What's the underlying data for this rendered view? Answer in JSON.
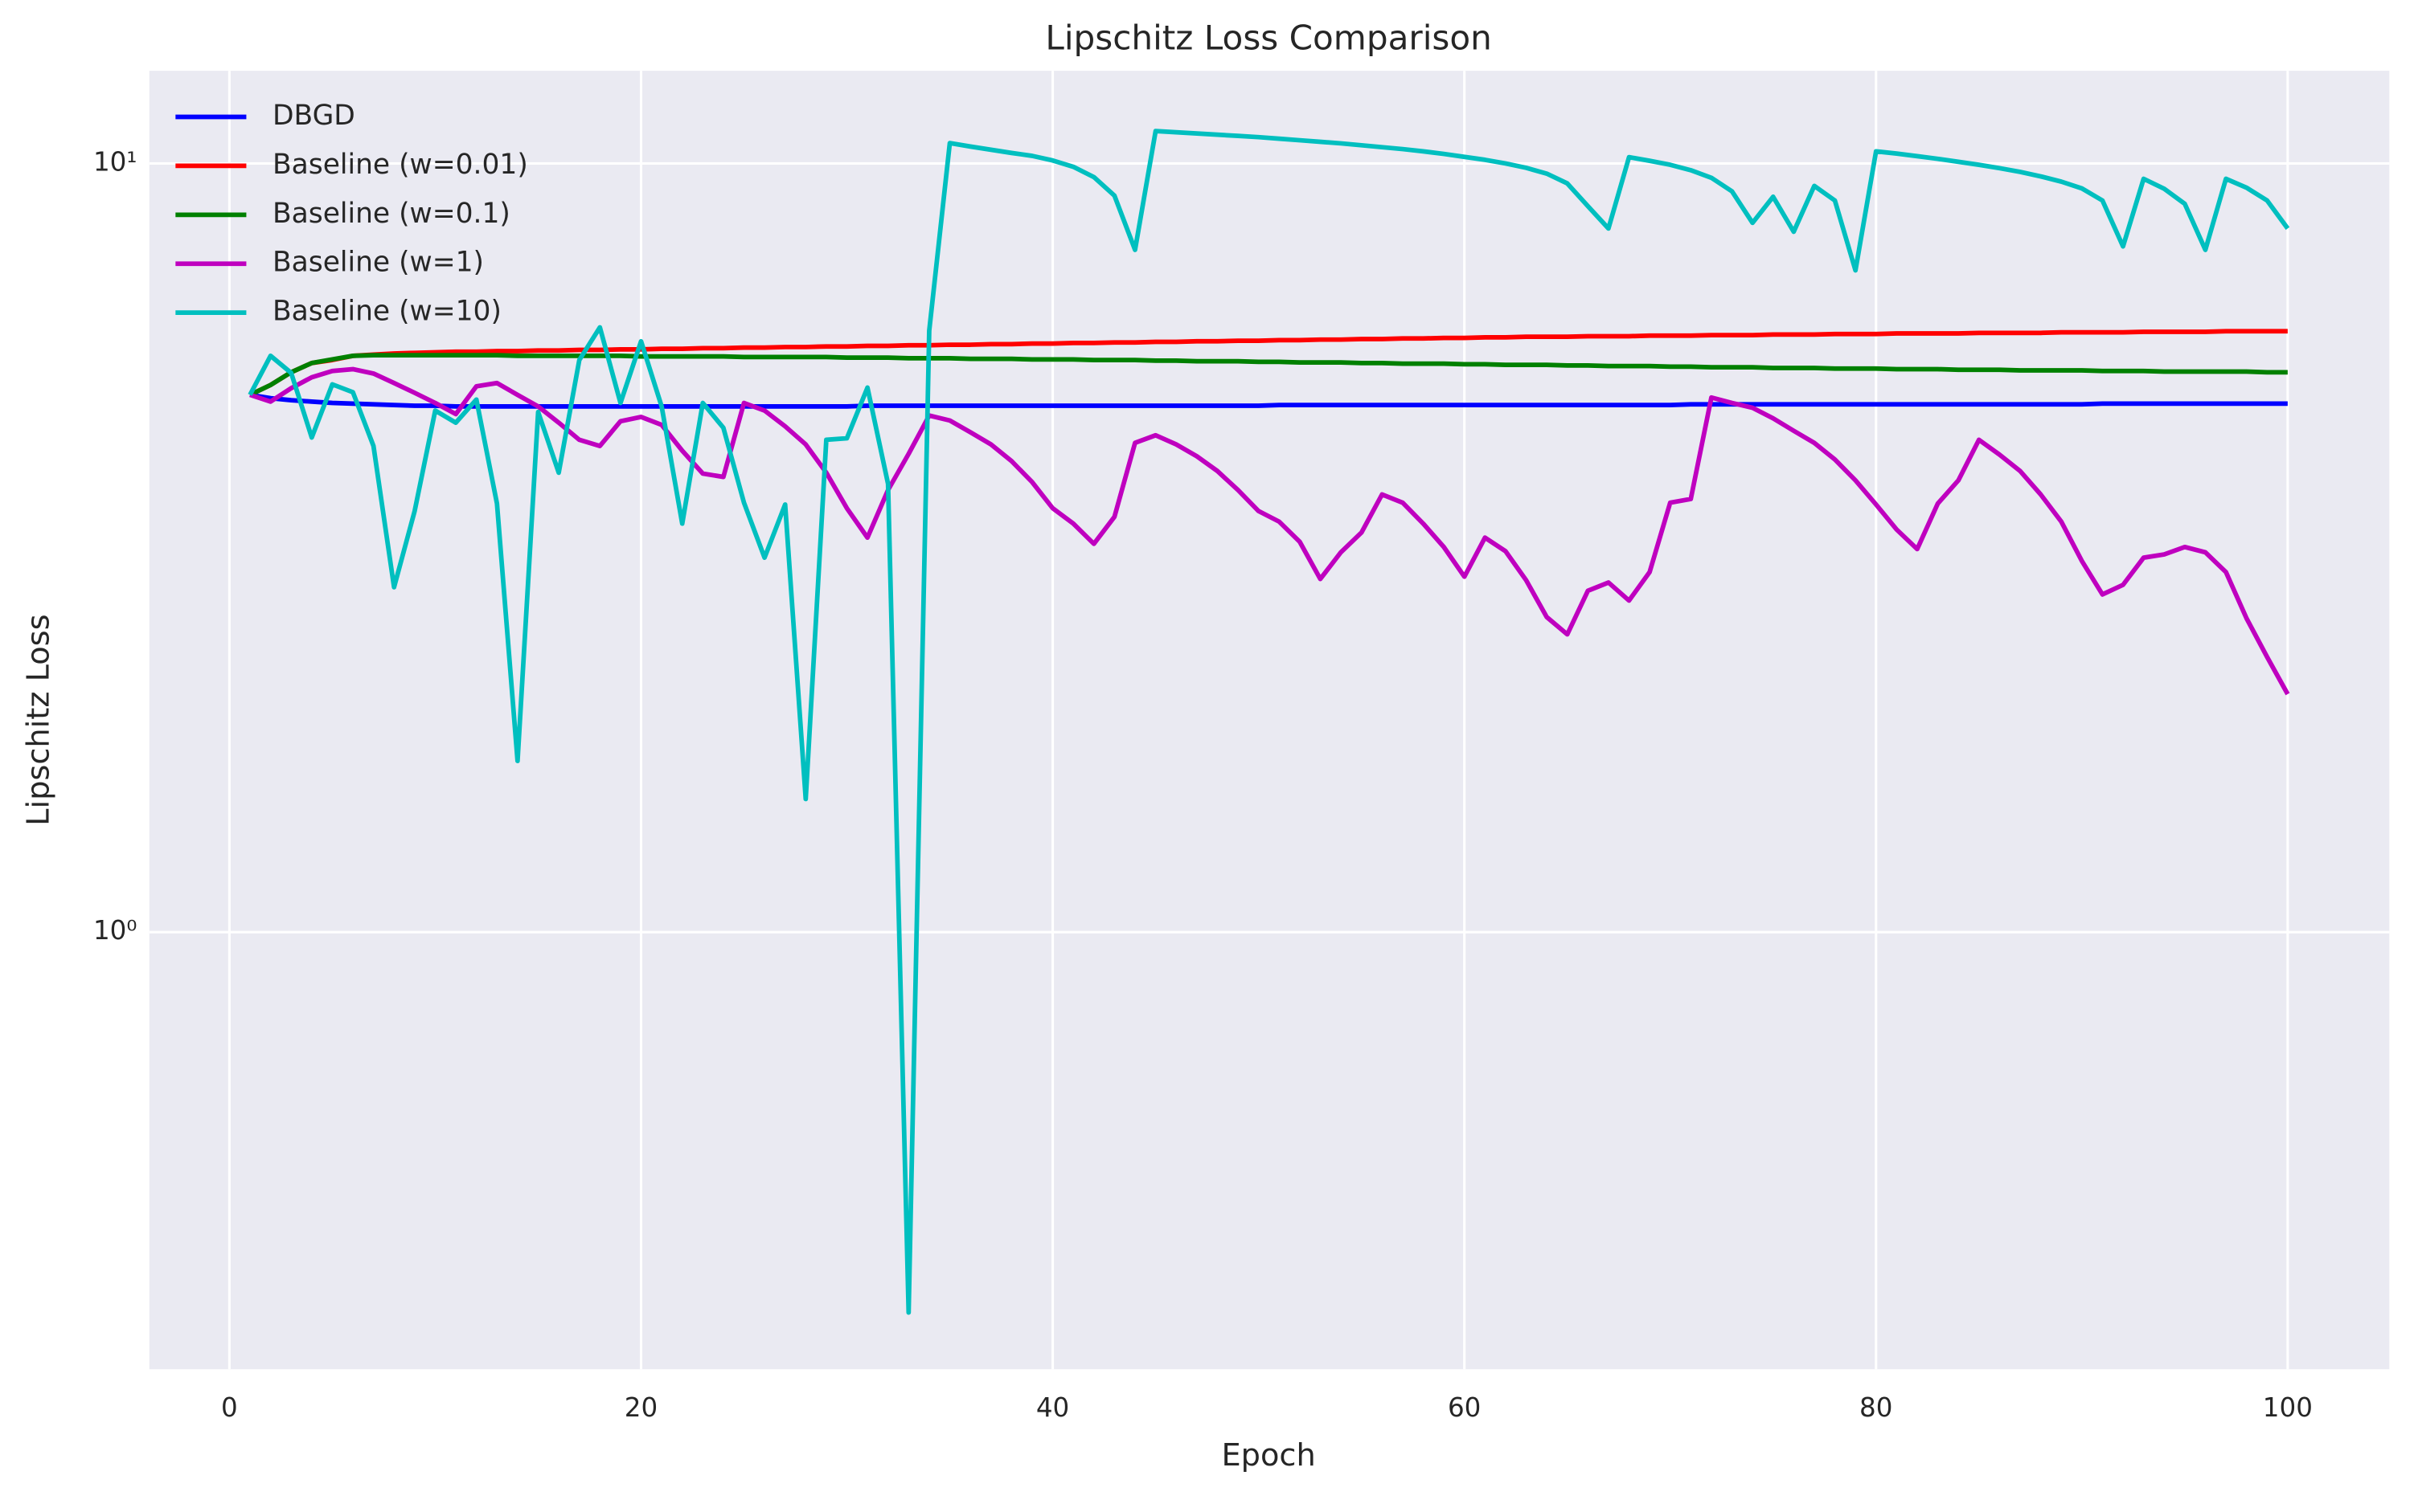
{
  "chart_data": {
    "type": "line",
    "title": "Lipschitz Loss Comparison",
    "x_label": "Epoch",
    "y_label": "Lipschitz Loss",
    "x": [
      1,
      2,
      3,
      4,
      5,
      6,
      7,
      8,
      9,
      10,
      11,
      12,
      13,
      14,
      15,
      16,
      17,
      18,
      19,
      20,
      21,
      22,
      23,
      24,
      25,
      26,
      27,
      28,
      29,
      30,
      31,
      32,
      33,
      34,
      35,
      36,
      37,
      38,
      39,
      40,
      41,
      42,
      43,
      44,
      45,
      46,
      47,
      48,
      49,
      50,
      51,
      52,
      53,
      54,
      55,
      56,
      57,
      58,
      59,
      60,
      61,
      62,
      63,
      64,
      65,
      66,
      67,
      68,
      69,
      70,
      71,
      72,
      73,
      74,
      75,
      76,
      77,
      78,
      79,
      80,
      81,
      82,
      83,
      84,
      85,
      86,
      87,
      88,
      89,
      90,
      91,
      92,
      93,
      94,
      95,
      96,
      97,
      98,
      99,
      100
    ],
    "series": [
      {
        "name": "DBGD",
        "color": "#0000ff",
        "values": [
          5.0,
          4.95,
          4.92,
          4.9,
          4.88,
          4.87,
          4.86,
          4.85,
          4.84,
          4.84,
          4.83,
          4.83,
          4.83,
          4.83,
          4.83,
          4.83,
          4.83,
          4.83,
          4.83,
          4.83,
          4.83,
          4.83,
          4.83,
          4.83,
          4.83,
          4.83,
          4.83,
          4.83,
          4.83,
          4.83,
          4.84,
          4.84,
          4.84,
          4.84,
          4.84,
          4.84,
          4.84,
          4.84,
          4.84,
          4.84,
          4.84,
          4.84,
          4.84,
          4.84,
          4.84,
          4.84,
          4.84,
          4.84,
          4.84,
          4.84,
          4.85,
          4.85,
          4.85,
          4.85,
          4.85,
          4.85,
          4.85,
          4.85,
          4.85,
          4.85,
          4.85,
          4.85,
          4.85,
          4.85,
          4.85,
          4.85,
          4.85,
          4.85,
          4.85,
          4.85,
          4.86,
          4.86,
          4.86,
          4.86,
          4.86,
          4.86,
          4.86,
          4.86,
          4.86,
          4.86,
          4.86,
          4.86,
          4.86,
          4.86,
          4.86,
          4.86,
          4.86,
          4.86,
          4.86,
          4.86,
          4.87,
          4.87,
          4.87,
          4.87,
          4.87,
          4.87,
          4.87,
          4.87,
          4.87,
          4.87
        ]
      },
      {
        "name": "Baseline (w=0.01)",
        "color": "#ff0000",
        "values": [
          5.0,
          5.15,
          5.35,
          5.5,
          5.55,
          5.62,
          5.64,
          5.66,
          5.67,
          5.68,
          5.69,
          5.69,
          5.7,
          5.7,
          5.71,
          5.71,
          5.72,
          5.72,
          5.73,
          5.73,
          5.74,
          5.74,
          5.75,
          5.75,
          5.76,
          5.76,
          5.77,
          5.77,
          5.78,
          5.78,
          5.79,
          5.79,
          5.8,
          5.8,
          5.81,
          5.81,
          5.82,
          5.82,
          5.83,
          5.83,
          5.84,
          5.84,
          5.85,
          5.85,
          5.86,
          5.86,
          5.87,
          5.87,
          5.88,
          5.88,
          5.89,
          5.89,
          5.9,
          5.9,
          5.91,
          5.91,
          5.92,
          5.92,
          5.93,
          5.93,
          5.94,
          5.94,
          5.95,
          5.95,
          5.95,
          5.96,
          5.96,
          5.96,
          5.97,
          5.97,
          5.97,
          5.98,
          5.98,
          5.98,
          5.99,
          5.99,
          5.99,
          6.0,
          6.0,
          6.0,
          6.01,
          6.01,
          6.01,
          6.01,
          6.02,
          6.02,
          6.02,
          6.02,
          6.03,
          6.03,
          6.03,
          6.03,
          6.04,
          6.04,
          6.04,
          6.04,
          6.05,
          6.05,
          6.05,
          6.05
        ]
      },
      {
        "name": "Baseline (w=0.1)",
        "color": "#008000",
        "values": [
          5.0,
          5.15,
          5.35,
          5.5,
          5.56,
          5.62,
          5.63,
          5.63,
          5.63,
          5.63,
          5.63,
          5.63,
          5.63,
          5.62,
          5.62,
          5.62,
          5.62,
          5.62,
          5.62,
          5.61,
          5.61,
          5.61,
          5.61,
          5.61,
          5.6,
          5.6,
          5.6,
          5.6,
          5.6,
          5.59,
          5.59,
          5.59,
          5.58,
          5.58,
          5.58,
          5.57,
          5.57,
          5.57,
          5.56,
          5.56,
          5.56,
          5.55,
          5.55,
          5.55,
          5.54,
          5.54,
          5.53,
          5.53,
          5.53,
          5.52,
          5.52,
          5.51,
          5.51,
          5.51,
          5.5,
          5.5,
          5.49,
          5.49,
          5.49,
          5.48,
          5.48,
          5.47,
          5.47,
          5.47,
          5.46,
          5.46,
          5.45,
          5.45,
          5.45,
          5.44,
          5.44,
          5.43,
          5.43,
          5.43,
          5.42,
          5.42,
          5.42,
          5.41,
          5.41,
          5.41,
          5.4,
          5.4,
          5.4,
          5.39,
          5.39,
          5.39,
          5.38,
          5.38,
          5.38,
          5.38,
          5.37,
          5.37,
          5.37,
          5.36,
          5.36,
          5.36,
          5.36,
          5.36,
          5.35,
          5.35
        ]
      },
      {
        "name": "Baseline (w=1)",
        "color": "#bf00bf",
        "values": [
          5.0,
          4.9,
          5.1,
          5.27,
          5.37,
          5.4,
          5.33,
          5.18,
          5.03,
          4.88,
          4.72,
          5.13,
          5.18,
          5.0,
          4.83,
          4.6,
          4.37,
          4.29,
          4.62,
          4.68,
          4.57,
          4.23,
          3.95,
          3.91,
          4.88,
          4.77,
          4.55,
          4.31,
          3.96,
          3.56,
          3.26,
          3.76,
          4.19,
          4.7,
          4.63,
          4.47,
          4.31,
          4.1,
          3.85,
          3.56,
          3.4,
          3.2,
          3.47,
          4.33,
          4.43,
          4.31,
          4.16,
          3.98,
          3.76,
          3.53,
          3.42,
          3.22,
          2.88,
          3.12,
          3.31,
          3.71,
          3.62,
          3.4,
          3.17,
          2.9,
          3.26,
          3.13,
          2.87,
          2.57,
          2.44,
          2.78,
          2.85,
          2.7,
          2.94,
          3.62,
          3.66,
          4.96,
          4.88,
          4.81,
          4.66,
          4.49,
          4.33,
          4.12,
          3.87,
          3.6,
          3.34,
          3.15,
          3.61,
          3.87,
          4.37,
          4.18,
          3.98,
          3.71,
          3.42,
          3.04,
          2.75,
          2.83,
          3.07,
          3.1,
          3.17,
          3.12,
          2.94,
          2.56,
          2.28,
          2.04
        ]
      },
      {
        "name": "Baseline (w=10)",
        "color": "#00bfbf",
        "values": [
          5.0,
          5.62,
          5.34,
          4.4,
          5.16,
          5.04,
          4.29,
          2.81,
          3.53,
          4.77,
          4.6,
          4.93,
          3.61,
          1.67,
          4.75,
          3.96,
          5.55,
          6.12,
          4.88,
          5.87,
          4.83,
          3.4,
          4.88,
          4.53,
          3.62,
          3.07,
          3.6,
          1.49,
          4.37,
          4.39,
          5.11,
          3.83,
          0.32,
          6.06,
          10.63,
          10.52,
          10.42,
          10.32,
          10.23,
          10.09,
          9.9,
          9.6,
          9.08,
          7.72,
          11.02,
          10.98,
          10.94,
          10.9,
          10.86,
          10.82,
          10.77,
          10.72,
          10.67,
          10.62,
          10.56,
          10.5,
          10.44,
          10.37,
          10.29,
          10.2,
          10.11,
          10.0,
          9.87,
          9.7,
          9.42,
          8.8,
          8.23,
          10.19,
          10.08,
          9.96,
          9.8,
          9.58,
          9.2,
          8.37,
          9.05,
          8.15,
          9.35,
          8.95,
          7.26,
          10.37,
          10.3,
          10.22,
          10.14,
          10.05,
          9.96,
          9.86,
          9.75,
          9.62,
          9.47,
          9.28,
          8.95,
          7.8,
          9.55,
          9.27,
          8.86,
          7.72,
          9.55,
          9.3,
          8.95,
          8.23
        ]
      }
    ],
    "xlim": [
      -3.89,
      104.94
    ],
    "xticks": [
      0,
      20,
      40,
      60,
      80,
      100
    ],
    "ylim": [
      0.27,
      13.2
    ],
    "yticks": [
      {
        "value": 1,
        "label": "10⁰"
      },
      {
        "value": 10,
        "label": "10¹"
      }
    ],
    "log_y": true,
    "grid": true,
    "legend": "upper left",
    "background": "#eaeaf2"
  }
}
